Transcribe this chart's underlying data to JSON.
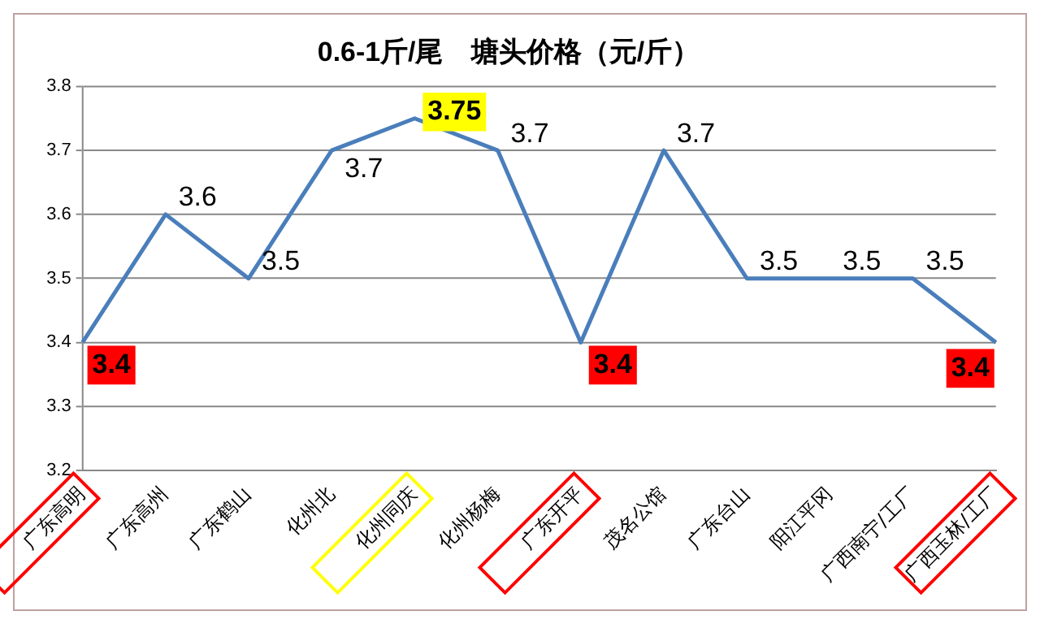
{
  "chart_data": {
    "type": "line",
    "title": "0.6-1斤/尾　塘头价格（元/斤）",
    "categories": [
      "广东高明",
      "广东高州",
      "广东鹤山",
      "化州北",
      "化州同庆",
      "化州杨梅",
      "广东开平",
      "茂名公馆",
      "广东台山",
      "阳江平冈",
      "广西南宁/工厂",
      "广西玉林/工厂"
    ],
    "values": [
      3.4,
      3.6,
      3.5,
      3.7,
      3.75,
      3.7,
      3.4,
      3.7,
      3.5,
      3.5,
      3.5,
      3.4
    ],
    "color": "#4a7ebb",
    "ylim": [
      3.2,
      3.8
    ],
    "yticks": [
      3.2,
      3.3,
      3.4,
      3.5,
      3.6,
      3.7,
      3.8
    ],
    "grid": "y",
    "legend": false,
    "marker": "none",
    "line_style": "solid",
    "data_labels": true
  }
}
